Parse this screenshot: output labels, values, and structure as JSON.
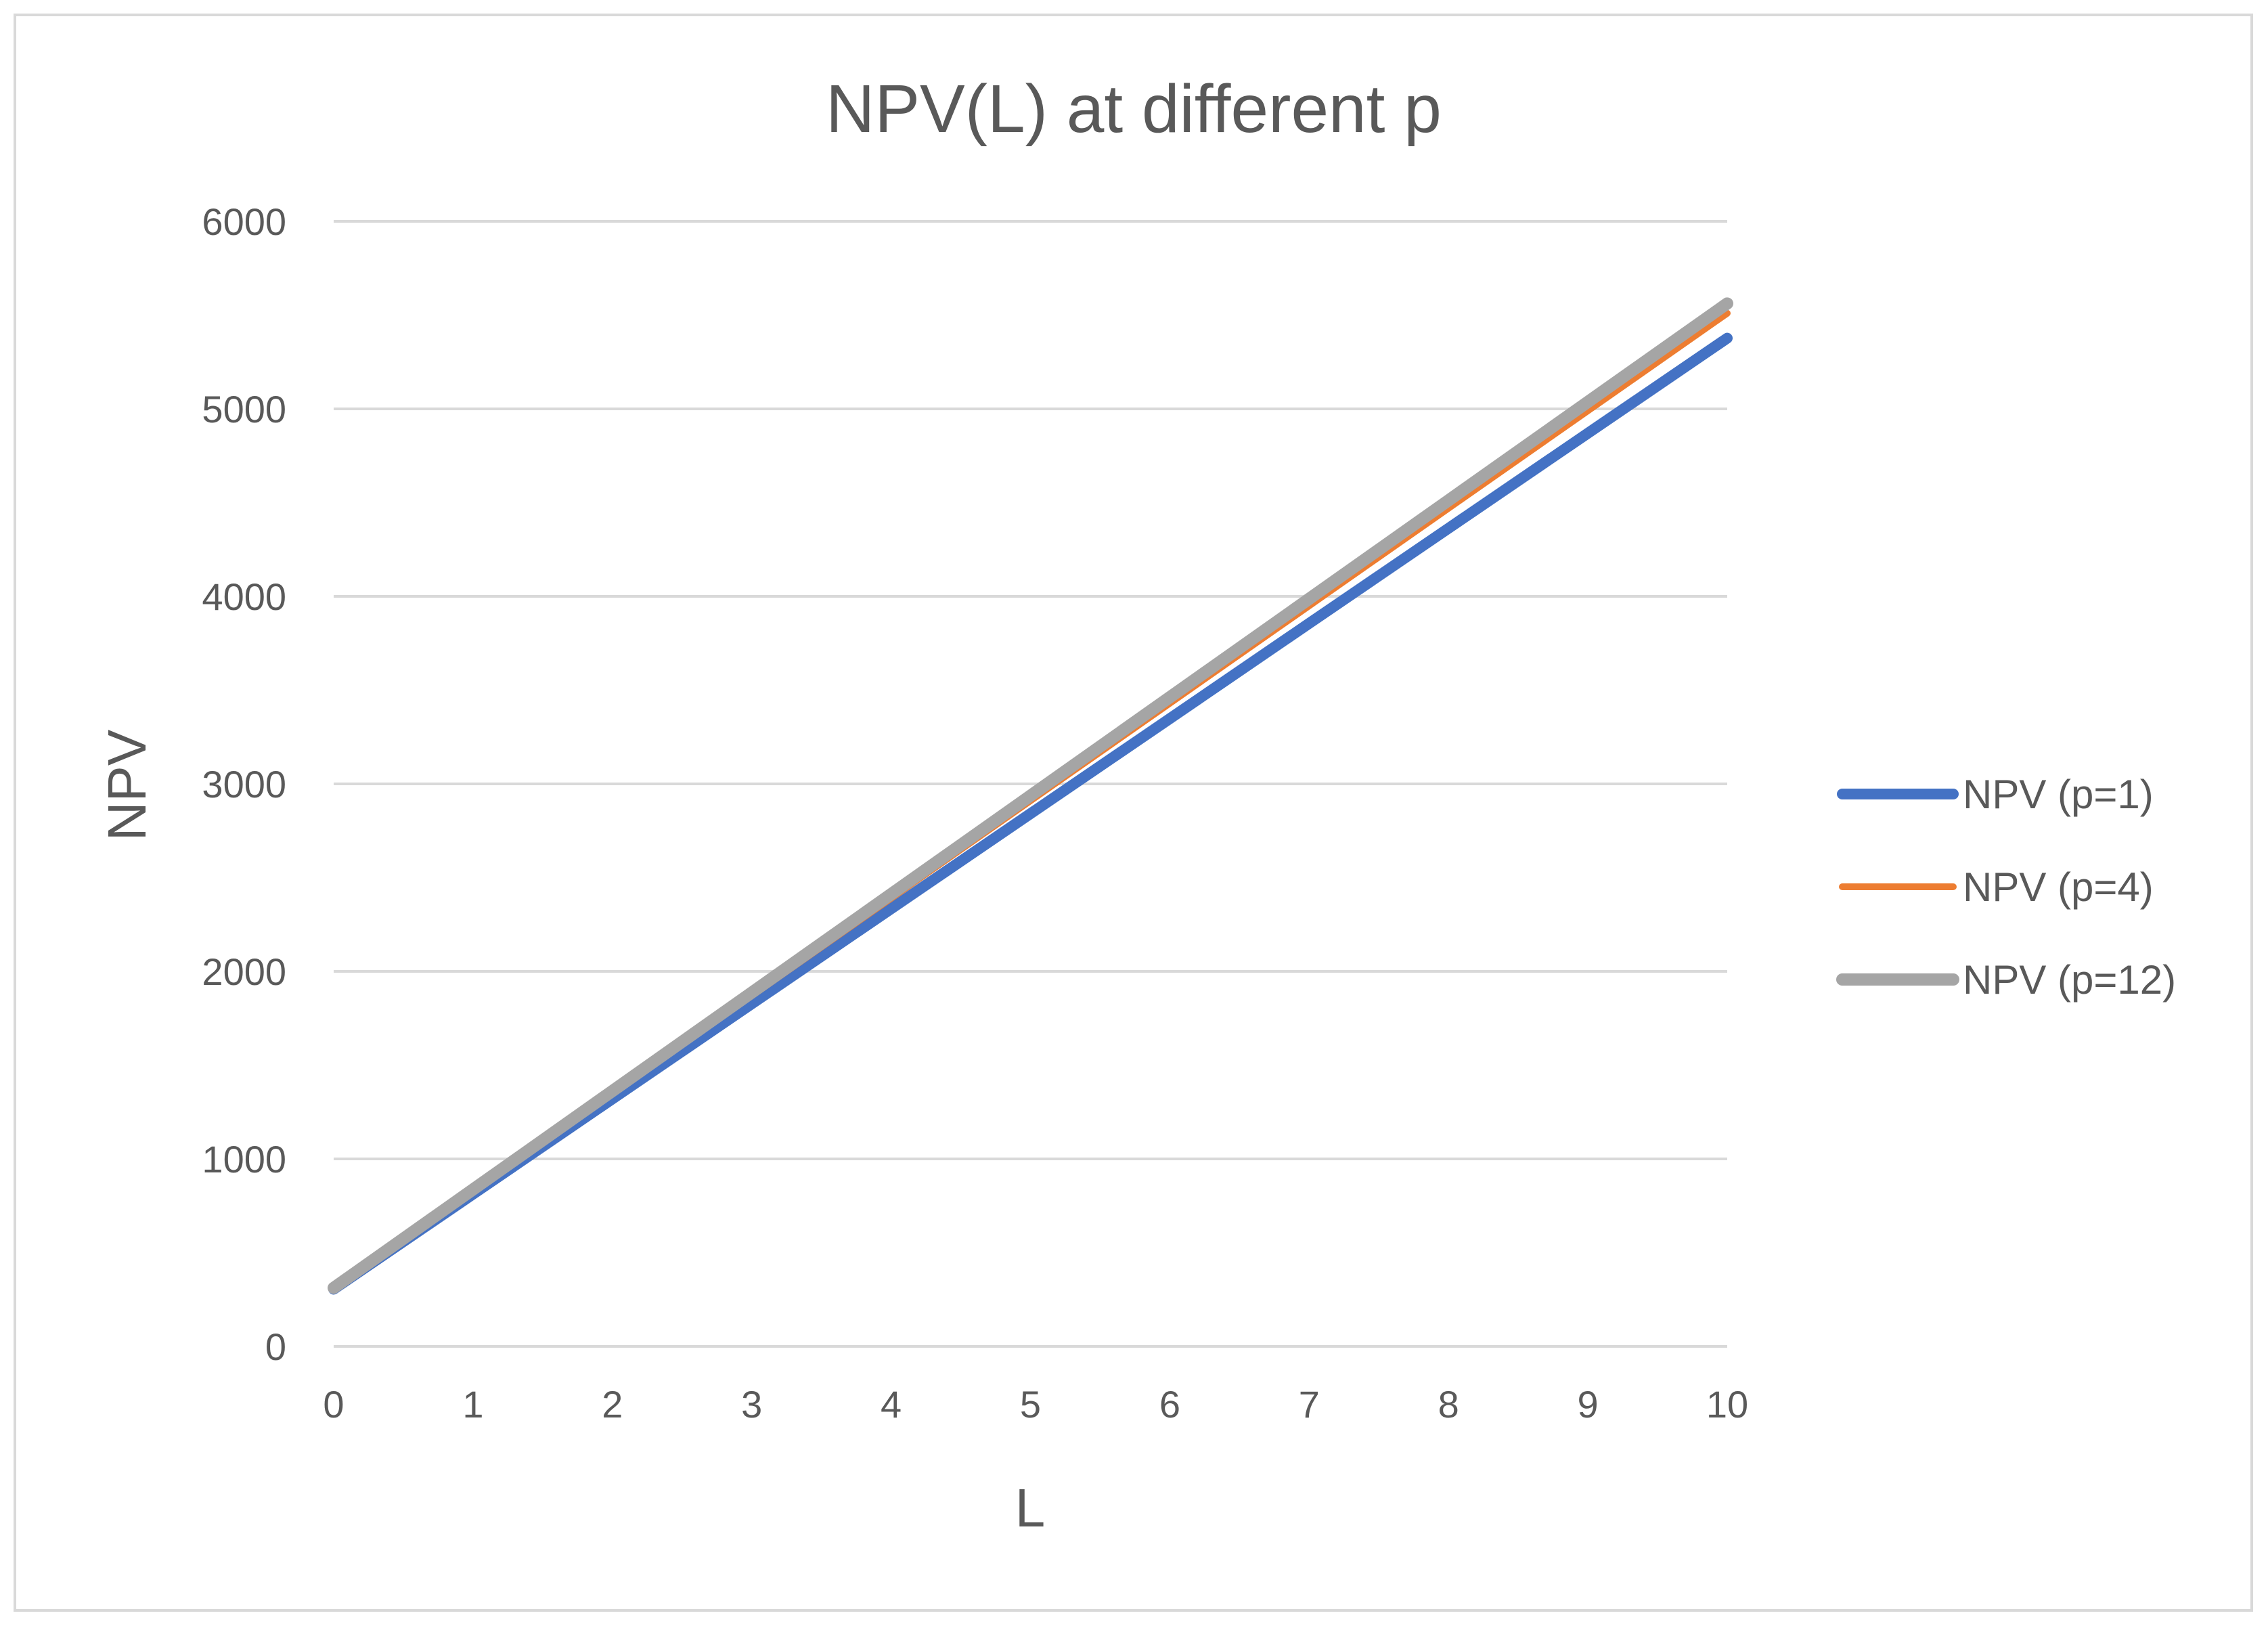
{
  "chart_data": {
    "type": "line",
    "title": "NPV(L) at different p",
    "xlabel": "L",
    "ylabel": "NPV",
    "x": [
      0,
      1,
      2,
      3,
      4,
      5,
      6,
      7,
      8,
      9,
      10
    ],
    "xlim": [
      0,
      10
    ],
    "ylim": [
      0,
      6000
    ],
    "yticks": [
      0,
      1000,
      2000,
      3000,
      4000,
      5000,
      6000
    ],
    "grid": true,
    "legend_position": "right",
    "series": [
      {
        "name": "NPV (p=1)",
        "color": "#4472c4",
        "values": [
          305,
          812,
          1320,
          1827,
          2334,
          2841,
          3348,
          3856,
          4363,
          4870,
          5377
        ]
      },
      {
        "name": "NPV (p=4)",
        "color": "#ed7d31",
        "values": [
          310,
          830,
          1350,
          1870,
          2390,
          2910,
          3430,
          3950,
          4470,
          4990,
          5510
        ]
      },
      {
        "name": "NPV (p=12)",
        "color": "#a5a5a5",
        "values": [
          312,
          837,
          1362,
          1887,
          2412,
          2937,
          3462,
          3987,
          4512,
          5037,
          5562
        ]
      }
    ]
  }
}
